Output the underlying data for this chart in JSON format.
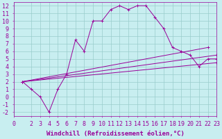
{
  "xlabel": "Windchill (Refroidissement éolien,°C)",
  "bg_color": "#c8eef0",
  "line_color": "#990099",
  "grid_color": "#99cccc",
  "xlim": [
    0,
    23
  ],
  "ylim": [
    -2.5,
    12.5
  ],
  "xticks": [
    0,
    2,
    3,
    4,
    5,
    6,
    7,
    8,
    9,
    10,
    11,
    12,
    13,
    14,
    15,
    16,
    17,
    18,
    19,
    20,
    21,
    22,
    23
  ],
  "yticks": [
    -2,
    -1,
    0,
    1,
    2,
    3,
    4,
    5,
    6,
    7,
    8,
    9,
    10,
    11,
    12
  ],
  "series1_x": [
    1,
    2,
    3,
    4,
    5,
    6,
    7,
    8,
    9,
    10,
    11,
    12,
    13,
    14,
    15,
    16,
    17,
    18,
    19,
    20,
    21,
    22,
    23
  ],
  "series1_y": [
    2,
    1,
    0,
    -2,
    1,
    3,
    7.5,
    6,
    10,
    10,
    11.5,
    12,
    11.5,
    12,
    12,
    10.5,
    9,
    6.5,
    6,
    5.5,
    4,
    5,
    5
  ],
  "series2_x": [
    1,
    22
  ],
  "series2_y": [
    2,
    6.5
  ],
  "series3_x": [
    1,
    23
  ],
  "series3_y": [
    2,
    5.5
  ],
  "series4_x": [
    1,
    23
  ],
  "series4_y": [
    2,
    4.5
  ],
  "font_size": 6,
  "xlabel_fontsize": 6.5
}
